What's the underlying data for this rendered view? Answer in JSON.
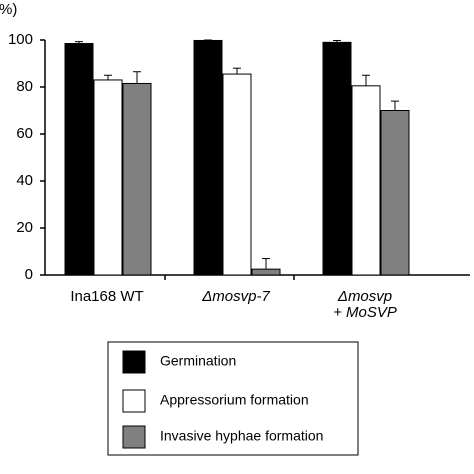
{
  "chart_data": {
    "type": "bar",
    "y_label": "(%)",
    "categories": [
      [
        "Ina168 WT"
      ],
      [
        "Δmosvp-7"
      ],
      [
        "Δmosvp",
        "+ MoSVP"
      ]
    ],
    "series": [
      {
        "name": "Germination",
        "color": "#000000",
        "values": [
          98.5,
          99.8,
          99
        ],
        "errors": [
          0.8,
          0.2,
          0.8
        ]
      },
      {
        "name": "Appressorium formation",
        "color": "#ffffff",
        "values": [
          83,
          85.5,
          80.5
        ],
        "errors": [
          2,
          2.5,
          4.5
        ]
      },
      {
        "name": "Invasive hyphae formation",
        "color": "#808080",
        "values": [
          81.5,
          2.5,
          70
        ],
        "errors": [
          5,
          4.5,
          4
        ]
      }
    ],
    "ylim": [
      0,
      100
    ],
    "yticks": [
      0,
      20,
      40,
      60,
      80,
      100
    ],
    "legend": "bottom"
  }
}
